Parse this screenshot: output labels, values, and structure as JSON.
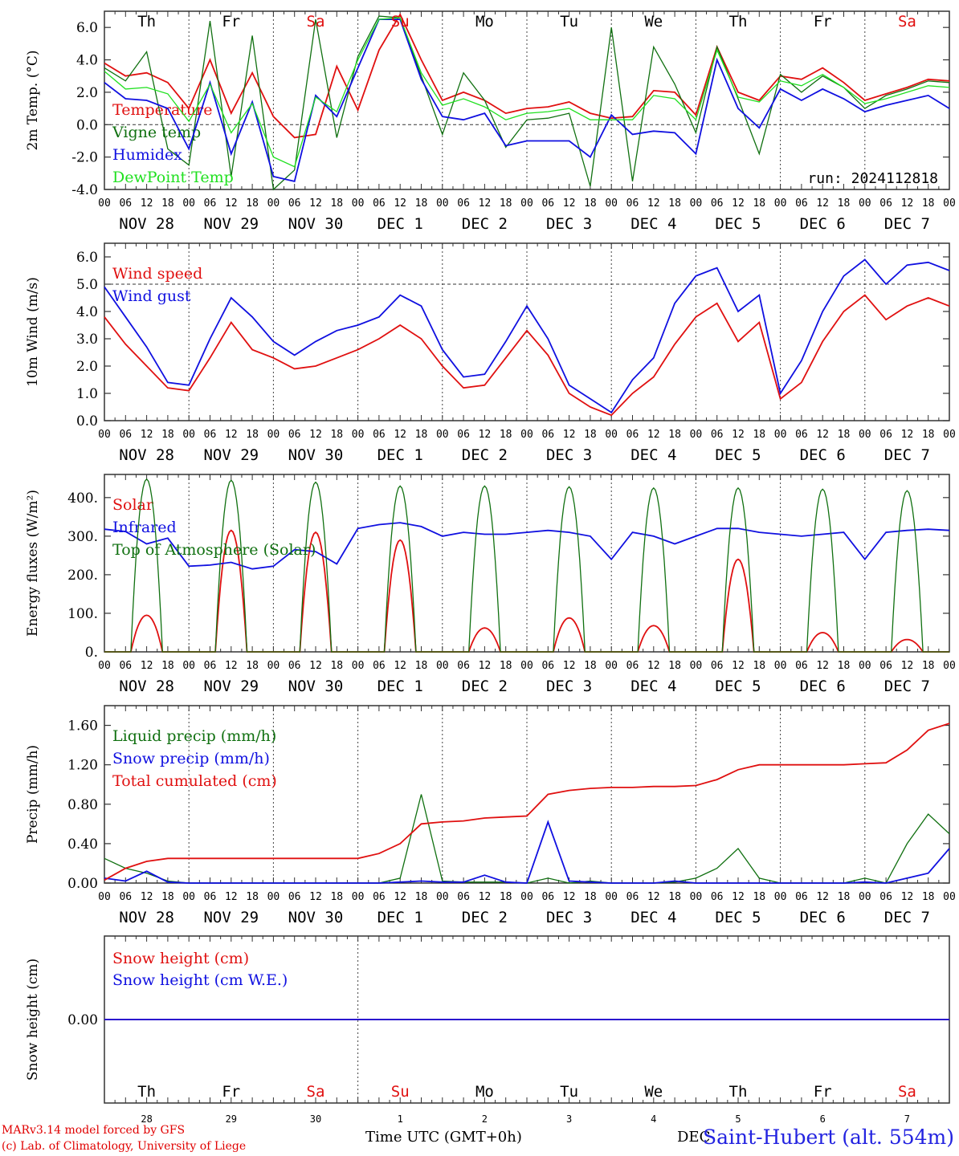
{
  "footer": {
    "model": "MARv3.14 model forced by GFS",
    "credit": "(c) Lab. of Climatology, University of Liege",
    "time_label": "Time UTC (GMT+0h)",
    "station": "Saint-Hubert (alt. 554m)",
    "month_label": "DEC"
  },
  "colors": {
    "red": "#e01010",
    "green": "#107010",
    "lightgreen": "#20e020",
    "blue": "#1010e0",
    "grid": "#555555"
  },
  "days": [
    {
      "dow": "Th",
      "weekend": false,
      "date": "NOV 28",
      "num": "28"
    },
    {
      "dow": "Fr",
      "weekend": false,
      "date": "NOV 29",
      "num": "29"
    },
    {
      "dow": "Sa",
      "weekend": true,
      "date": "NOV 30",
      "num": "30"
    },
    {
      "dow": "Su",
      "weekend": true,
      "date": "DEC  1",
      "num": "1"
    },
    {
      "dow": "Mo",
      "weekend": false,
      "date": "DEC  2",
      "num": "2"
    },
    {
      "dow": "Tu",
      "weekend": false,
      "date": "DEC  3",
      "num": "3"
    },
    {
      "dow": "We",
      "weekend": false,
      "date": "DEC  4",
      "num": "4"
    },
    {
      "dow": "Th",
      "weekend": false,
      "date": "DEC  5",
      "num": "5"
    },
    {
      "dow": "Fr",
      "weekend": false,
      "date": "DEC  6",
      "num": "6"
    },
    {
      "dow": "Sa",
      "weekend": true,
      "date": "DEC  7",
      "num": "7"
    }
  ],
  "hour_ticks": [
    "00",
    "06",
    "12",
    "18"
  ],
  "chart_data": [
    {
      "type": "line",
      "ylabel": "2m Temp. (°C)",
      "ylim": [
        -4,
        7
      ],
      "yticks": [
        "-4.0",
        "-2.0",
        "0.0",
        "2.0",
        "4.0",
        "6.0"
      ],
      "ytick_values": [
        -4,
        -2,
        0,
        2,
        4,
        6
      ],
      "ref_line": 0,
      "annotation": "run: 2024112818",
      "x_hours": [
        0,
        6,
        12,
        18,
        24,
        30,
        36,
        42,
        48,
        54,
        60,
        66,
        72,
        78,
        84,
        90,
        96,
        102,
        108,
        114,
        120,
        126,
        132,
        138,
        144,
        150,
        156,
        162,
        168,
        174,
        180,
        186,
        192,
        198,
        204,
        210,
        216,
        222,
        228,
        234,
        240
      ],
      "series": [
        {
          "name": "Temperature",
          "color": "red",
          "values": [
            3.8,
            3.0,
            3.2,
            2.6,
            1.0,
            4.0,
            0.7,
            3.2,
            0.5,
            -0.8,
            -0.6,
            3.6,
            0.9,
            4.6,
            6.8,
            4.0,
            1.5,
            2.0,
            1.5,
            0.7,
            1.0,
            1.1,
            1.4,
            0.7,
            0.4,
            0.5,
            2.1,
            2.0,
            0.6,
            4.8,
            2.0,
            1.5,
            3.0,
            2.8,
            3.5,
            2.6,
            1.5,
            1.9,
            2.3,
            2.8,
            2.7
          ]
        },
        {
          "name": "Vigne temp",
          "color": "green",
          "values": [
            3.5,
            2.7,
            4.5,
            -1.5,
            -2.5,
            6.4,
            -3.2,
            5.5,
            -4.0,
            -2.8,
            6.5,
            -0.8,
            4.2,
            6.7,
            6.6,
            3.0,
            -0.6,
            3.2,
            1.5,
            -1.4,
            0.3,
            0.4,
            0.7,
            -3.8,
            6.0,
            -3.5,
            4.8,
            2.5,
            -0.5,
            4.8,
            1.6,
            -1.8,
            3.1,
            2.0,
            3.0,
            2.3,
            1.0,
            1.8,
            2.2,
            2.7,
            2.6
          ]
        },
        {
          "name": "Humidex",
          "color": "blue",
          "values": [
            2.6,
            1.6,
            1.5,
            1.0,
            -1.5,
            2.6,
            -1.8,
            1.4,
            -3.2,
            -3.5,
            1.8,
            0.5,
            3.5,
            6.5,
            6.5,
            2.8,
            0.5,
            0.3,
            0.7,
            -1.3,
            -1.0,
            -1.0,
            -1.0,
            -2.0,
            0.6,
            -0.6,
            -0.4,
            -0.5,
            -1.8,
            4.0,
            1.0,
            -0.2,
            2.2,
            1.5,
            2.2,
            1.6,
            0.8,
            1.2,
            1.5,
            1.8,
            1.0
          ]
        },
        {
          "name": "DewPoint Temp",
          "color": "lightgreen",
          "values": [
            3.3,
            2.2,
            2.3,
            1.9,
            0.2,
            2.5,
            -0.5,
            1.3,
            -2.0,
            -2.6,
            1.7,
            0.8,
            4.0,
            6.5,
            6.6,
            3.2,
            1.2,
            1.6,
            1.1,
            0.3,
            0.7,
            0.8,
            1.0,
            0.3,
            0.3,
            0.3,
            1.8,
            1.6,
            0.3,
            4.6,
            1.7,
            1.4,
            2.7,
            2.4,
            3.1,
            2.3,
            1.3,
            1.6,
            2.0,
            2.4,
            2.3
          ]
        }
      ]
    },
    {
      "type": "line",
      "ylabel": "10m Wind (m/s)",
      "ylim": [
        0,
        6.5
      ],
      "yticks": [
        "0.0",
        "1.0",
        "2.0",
        "3.0",
        "4.0",
        "5.0",
        "6.0"
      ],
      "ytick_values": [
        0,
        1,
        2,
        3,
        4,
        5,
        6
      ],
      "ref_line": 5,
      "x_hours": [
        0,
        6,
        12,
        18,
        24,
        30,
        36,
        42,
        48,
        54,
        60,
        66,
        72,
        78,
        84,
        90,
        96,
        102,
        108,
        114,
        120,
        126,
        132,
        138,
        144,
        150,
        156,
        162,
        168,
        174,
        180,
        186,
        192,
        198,
        204,
        210,
        216,
        222,
        228,
        234,
        240
      ],
      "series": [
        {
          "name": "Wind speed",
          "color": "red",
          "values": [
            3.8,
            2.8,
            2.0,
            1.2,
            1.1,
            2.3,
            3.6,
            2.6,
            2.3,
            1.9,
            2.0,
            2.3,
            2.6,
            3.0,
            3.5,
            3.0,
            2.0,
            1.2,
            1.3,
            2.3,
            3.3,
            2.4,
            1.0,
            0.5,
            0.2,
            1.0,
            1.6,
            2.8,
            3.8,
            4.3,
            2.9,
            3.6,
            0.8,
            1.4,
            2.9,
            4.0,
            4.6,
            3.7,
            4.2,
            4.5,
            4.2
          ]
        },
        {
          "name": "Wind gust",
          "color": "blue",
          "values": [
            4.9,
            3.8,
            2.7,
            1.4,
            1.3,
            3.0,
            4.5,
            3.8,
            2.9,
            2.4,
            2.9,
            3.3,
            3.5,
            3.8,
            4.6,
            4.2,
            2.6,
            1.6,
            1.7,
            2.9,
            4.2,
            3.0,
            1.3,
            0.8,
            0.3,
            1.5,
            2.3,
            4.3,
            5.3,
            5.6,
            4.0,
            4.6,
            1.0,
            2.2,
            4.0,
            5.3,
            5.9,
            5.0,
            5.7,
            5.8,
            5.5
          ]
        }
      ]
    },
    {
      "type": "line",
      "ylabel": "Energy fluxes (W/m²)",
      "ylim": [
        0,
        460
      ],
      "yticks": [
        "0.",
        "100.",
        "200.",
        "300.",
        "400."
      ],
      "ytick_values": [
        0,
        100,
        200,
        300,
        400
      ],
      "series": [
        {
          "name": "Solar",
          "color": "red",
          "peaks": [
            95,
            315,
            310,
            290,
            62,
            88,
            68,
            240,
            50,
            32
          ]
        },
        {
          "name": "Infrared",
          "color": "blue",
          "x_hours": [
            0,
            6,
            12,
            18,
            24,
            30,
            36,
            42,
            48,
            54,
            60,
            66,
            72,
            78,
            84,
            90,
            96,
            102,
            108,
            114,
            120,
            126,
            132,
            138,
            144,
            150,
            156,
            162,
            168,
            174,
            180,
            186,
            192,
            198,
            204,
            210,
            216,
            222,
            228,
            234,
            240
          ],
          "values": [
            318,
            312,
            280,
            295,
            222,
            225,
            232,
            215,
            222,
            265,
            260,
            228,
            320,
            330,
            335,
            325,
            300,
            310,
            305,
            305,
            310,
            315,
            310,
            300,
            240,
            310,
            300,
            280,
            300,
            320,
            320,
            310,
            305,
            300,
            305,
            310,
            240,
            310,
            315,
            318,
            315
          ]
        },
        {
          "name": "Top of Atmosphere (Solar)",
          "color": "green",
          "peaks": [
            448,
            445,
            440,
            430,
            430,
            428,
            425,
            425,
            422,
            418
          ]
        }
      ]
    },
    {
      "type": "line",
      "ylabel": "Precip (mm/h)",
      "ylim": [
        0,
        1.8
      ],
      "yticks": [
        "0.00",
        "0.40",
        "0.80",
        "1.20",
        "1.60"
      ],
      "ytick_values": [
        0,
        0.4,
        0.8,
        1.2,
        1.6
      ],
      "x_hours": [
        0,
        6,
        12,
        18,
        24,
        30,
        36,
        42,
        48,
        54,
        60,
        66,
        72,
        78,
        84,
        90,
        96,
        102,
        108,
        114,
        120,
        126,
        132,
        138,
        144,
        150,
        156,
        162,
        168,
        174,
        180,
        186,
        192,
        198,
        204,
        210,
        216,
        222,
        228,
        234,
        240
      ],
      "series": [
        {
          "name": "Liquid precip (mm/h)",
          "color": "green",
          "values": [
            0.25,
            0.15,
            0.1,
            0.02,
            0,
            0,
            0,
            0,
            0,
            0,
            0,
            0,
            0,
            0,
            0.05,
            0.9,
            0.02,
            0.01,
            0.01,
            0.01,
            0,
            0.05,
            0,
            0.02,
            0,
            0,
            0,
            0.01,
            0.05,
            0.15,
            0.35,
            0.05,
            0,
            0,
            0,
            0,
            0.05,
            0,
            0.4,
            0.7,
            0.5
          ]
        },
        {
          "name": "Snow precip (mm/h)",
          "color": "blue",
          "values": [
            0.05,
            0.02,
            0.12,
            0.01,
            0,
            0,
            0,
            0,
            0,
            0,
            0,
            0,
            0,
            0,
            0.01,
            0.02,
            0.01,
            0.01,
            0.08,
            0.01,
            0,
            0.62,
            0.02,
            0.01,
            0,
            0,
            0,
            0.02,
            0,
            0,
            0,
            0,
            0,
            0,
            0,
            0,
            0.01,
            0,
            0.05,
            0.1,
            0.35
          ]
        },
        {
          "name": "Total cumulated (cm)",
          "color": "red",
          "values": [
            0.03,
            0.15,
            0.22,
            0.25,
            0.25,
            0.25,
            0.25,
            0.25,
            0.25,
            0.25,
            0.25,
            0.25,
            0.25,
            0.3,
            0.4,
            0.6,
            0.62,
            0.63,
            0.66,
            0.67,
            0.68,
            0.9,
            0.94,
            0.96,
            0.97,
            0.97,
            0.98,
            0.98,
            0.99,
            1.05,
            1.15,
            1.2,
            1.2,
            1.2,
            1.2,
            1.2,
            1.21,
            1.22,
            1.35,
            1.55,
            1.62
          ]
        }
      ]
    },
    {
      "type": "line",
      "ylabel": "Snow height (cm)",
      "ylim": [
        -1,
        1
      ],
      "yticks": [
        "0.00"
      ],
      "ytick_values": [
        0
      ],
      "series": [
        {
          "name": "Snow height (cm)",
          "color": "red",
          "values": [
            0,
            0
          ]
        },
        {
          "name": "Snow height (cm W.E.)",
          "color": "blue",
          "values": [
            0,
            0
          ]
        }
      ]
    }
  ]
}
